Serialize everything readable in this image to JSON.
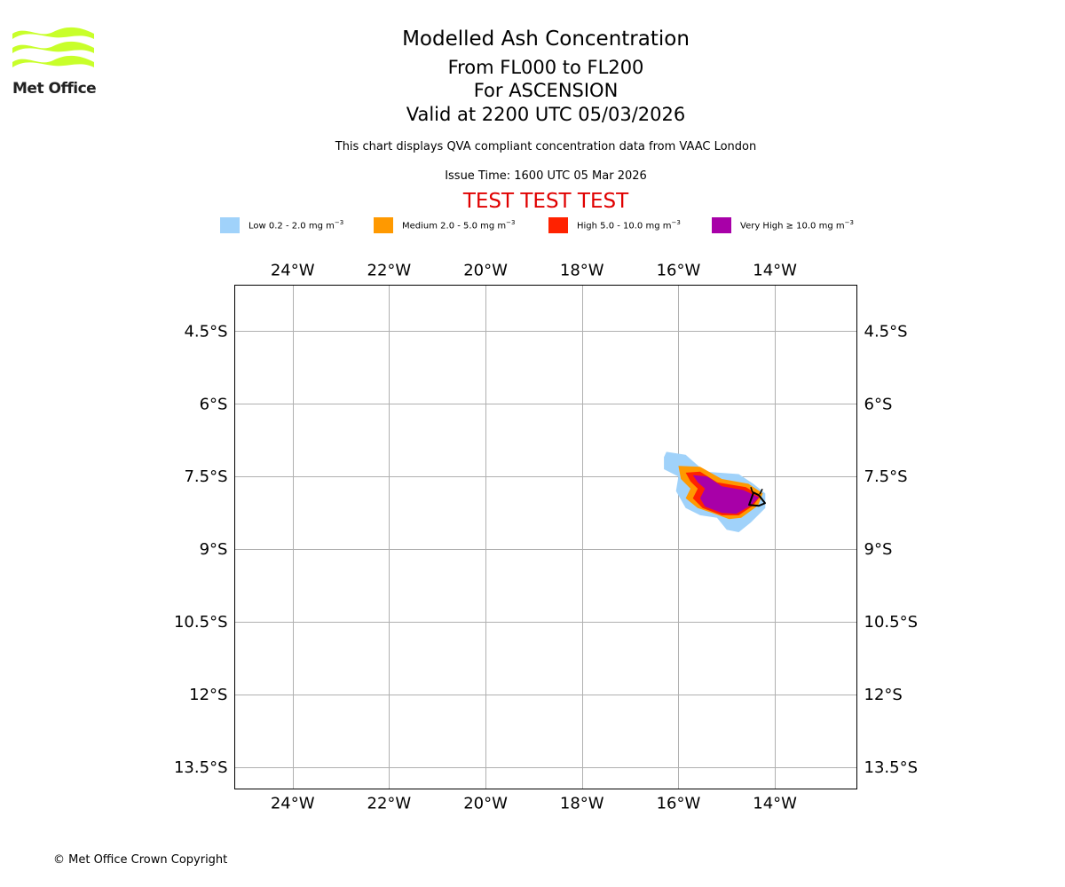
{
  "header": {
    "logo_name": "Met Office",
    "title": "Modelled Ash Concentration",
    "levels": "From FL000 to FL200",
    "location": "For ASCENSION",
    "valid": "Valid at 2200 UTC 05/03/2026",
    "subtitle": "This chart displays QVA compliant concentration data from VAAC London",
    "issue": "Issue Time: 1600 UTC 05 Mar 2026",
    "test_banner": "TEST TEST TEST"
  },
  "legend": [
    {
      "label": "Low 0.2 - 2.0 mg m",
      "sup": "−3",
      "color": "#a0d2fa"
    },
    {
      "label": "Medium 2.0 - 5.0 mg m",
      "sup": "−3",
      "color": "#ff9900"
    },
    {
      "label": "High 5.0 - 10.0 mg m",
      "sup": "−3",
      "color": "#ff2200"
    },
    {
      "label": "Very High  ≥  10.0 mg m",
      "sup": "−3",
      "color": "#a800a8"
    }
  ],
  "map": {
    "lon_range": [
      -25.2,
      -12.3
    ],
    "lat_range": [
      -13.95,
      -3.55
    ],
    "lon_ticks": [
      {
        "value": -24,
        "label": "24°W"
      },
      {
        "value": -22,
        "label": "22°W"
      },
      {
        "value": -20,
        "label": "20°W"
      },
      {
        "value": -18,
        "label": "18°W"
      },
      {
        "value": -16,
        "label": "16°W"
      },
      {
        "value": -14,
        "label": "14°W"
      }
    ],
    "lat_ticks": [
      {
        "value": -4.5,
        "label": "4.5°S"
      },
      {
        "value": -6,
        "label": "6°S"
      },
      {
        "value": -7.5,
        "label": "7.5°S"
      },
      {
        "value": -9,
        "label": "9°S"
      },
      {
        "value": -10.5,
        "label": "10.5°S"
      },
      {
        "value": -12,
        "label": "12°S"
      },
      {
        "value": -13.5,
        "label": "13.5°S"
      }
    ],
    "grid": true,
    "volcano_marker": "volcano-icon",
    "contours": {
      "low": [
        [
          -16.25,
          -6.99
        ],
        [
          -15.85,
          -7.05
        ],
        [
          -15.45,
          -7.4
        ],
        [
          -14.75,
          -7.45
        ],
        [
          -14.45,
          -7.65
        ],
        [
          -14.2,
          -7.85
        ],
        [
          -14.2,
          -8.15
        ],
        [
          -14.5,
          -8.45
        ],
        [
          -14.75,
          -8.65
        ],
        [
          -15.0,
          -8.6
        ],
        [
          -15.2,
          -8.35
        ],
        [
          -15.55,
          -8.3
        ],
        [
          -15.85,
          -8.15
        ],
        [
          -16.05,
          -7.8
        ],
        [
          -16.0,
          -7.5
        ],
        [
          -16.3,
          -7.35
        ],
        [
          -16.3,
          -7.1
        ]
      ],
      "medium": [
        [
          -16.0,
          -7.28
        ],
        [
          -15.55,
          -7.3
        ],
        [
          -15.1,
          -7.55
        ],
        [
          -14.55,
          -7.65
        ],
        [
          -14.25,
          -7.85
        ],
        [
          -14.35,
          -8.1
        ],
        [
          -14.7,
          -8.35
        ],
        [
          -14.95,
          -8.38
        ],
        [
          -15.3,
          -8.25
        ],
        [
          -15.6,
          -8.15
        ],
        [
          -15.85,
          -7.95
        ],
        [
          -15.75,
          -7.75
        ],
        [
          -15.95,
          -7.55
        ]
      ],
      "high": [
        [
          -15.85,
          -7.42
        ],
        [
          -15.55,
          -7.4
        ],
        [
          -15.2,
          -7.62
        ],
        [
          -14.6,
          -7.72
        ],
        [
          -14.3,
          -7.9
        ],
        [
          -14.45,
          -8.1
        ],
        [
          -14.75,
          -8.3
        ],
        [
          -15.1,
          -8.3
        ],
        [
          -15.5,
          -8.15
        ],
        [
          -15.7,
          -7.95
        ],
        [
          -15.6,
          -7.75
        ],
        [
          -15.75,
          -7.6
        ]
      ],
      "very_high": [
        [
          -15.7,
          -7.47
        ],
        [
          -15.4,
          -7.5
        ],
        [
          -15.1,
          -7.7
        ],
        [
          -14.65,
          -7.78
        ],
        [
          -14.33,
          -7.93
        ],
        [
          -14.5,
          -8.1
        ],
        [
          -14.8,
          -8.27
        ],
        [
          -15.1,
          -8.25
        ],
        [
          -15.45,
          -8.12
        ],
        [
          -15.55,
          -7.95
        ],
        [
          -15.45,
          -7.75
        ],
        [
          -15.6,
          -7.62
        ]
      ]
    }
  },
  "footer": {
    "copyright": "© Met Office Crown Copyright"
  }
}
